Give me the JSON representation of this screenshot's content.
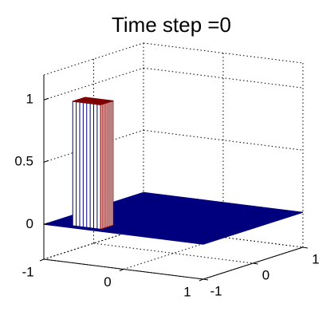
{
  "chart_data": {
    "type": "surface3d",
    "title": "Time step =0",
    "xlim": [
      -1,
      1
    ],
    "xticks": [
      -1,
      0,
      1
    ],
    "ylim": [
      -1,
      1
    ],
    "yticks": [
      -1,
      0,
      1
    ],
    "zlim": [
      -0.28,
      1.2
    ],
    "zticks": [
      0,
      0.5,
      1
    ],
    "grid": true,
    "plane_z": 0,
    "plane_color": "#00007f",
    "pulse": {
      "x": [
        -0.7,
        -0.35
      ],
      "y": [
        -0.9,
        -0.65
      ],
      "z": 1,
      "color": "#7f0000"
    }
  }
}
